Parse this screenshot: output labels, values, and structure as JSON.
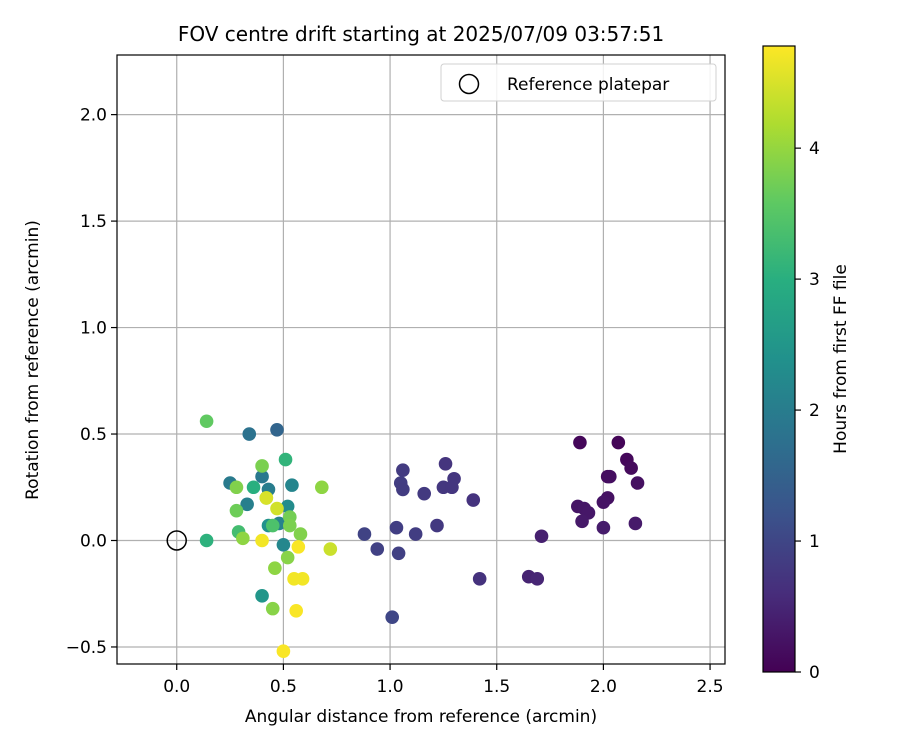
{
  "chart_data": {
    "type": "scatter",
    "title": "FOV centre drift starting at 2025/07/09 03:57:51",
    "xlabel": "Angular distance from reference (arcmin)",
    "ylabel": "Rotation from reference (arcmin)",
    "xlim": [
      -0.28,
      2.57
    ],
    "ylim": [
      -0.58,
      2.28
    ],
    "xticks": [
      0.0,
      0.5,
      1.0,
      1.5,
      2.0,
      2.5
    ],
    "yticks": [
      -0.5,
      0.0,
      0.5,
      1.0,
      1.5,
      2.0
    ],
    "xtick_labels": [
      "0.0",
      "0.5",
      "1.0",
      "1.5",
      "2.0",
      "2.5"
    ],
    "ytick_labels": [
      "−0.5",
      "0.0",
      "0.5",
      "1.0",
      "1.5",
      "2.0"
    ],
    "grid": true,
    "legend": {
      "placement": "top-right",
      "label": "Reference platepar"
    },
    "reference_point": {
      "x": 0.0,
      "y": 0.0
    },
    "colorbar": {
      "label": "Hours from first FF file",
      "range": [
        0,
        4.78
      ],
      "ticks": [
        0,
        1,
        2,
        3,
        4
      ],
      "tick_labels": [
        "0",
        "1",
        "2",
        "3",
        "4"
      ],
      "colormap": "viridis"
    },
    "points": [
      {
        "x": 2.07,
        "y": 0.46,
        "c": 0.05
      },
      {
        "x": 1.89,
        "y": 0.46,
        "c": 0.08
      },
      {
        "x": 2.11,
        "y": 0.38,
        "c": 0.1
      },
      {
        "x": 2.13,
        "y": 0.34,
        "c": 0.13
      },
      {
        "x": 2.02,
        "y": 0.3,
        "c": 0.16
      },
      {
        "x": 2.03,
        "y": 0.3,
        "c": 0.18
      },
      {
        "x": 2.16,
        "y": 0.27,
        "c": 0.2
      },
      {
        "x": 2.02,
        "y": 0.2,
        "c": 0.22
      },
      {
        "x": 2.0,
        "y": 0.18,
        "c": 0.24
      },
      {
        "x": 1.88,
        "y": 0.16,
        "c": 0.26
      },
      {
        "x": 1.91,
        "y": 0.15,
        "c": 0.28
      },
      {
        "x": 1.93,
        "y": 0.13,
        "c": 0.3
      },
      {
        "x": 1.9,
        "y": 0.09,
        "c": 0.32
      },
      {
        "x": 2.15,
        "y": 0.08,
        "c": 0.34
      },
      {
        "x": 2.0,
        "y": 0.06,
        "c": 0.36
      },
      {
        "x": 1.71,
        "y": 0.02,
        "c": 0.42
      },
      {
        "x": 1.65,
        "y": -0.17,
        "c": 0.46
      },
      {
        "x": 1.69,
        "y": -0.18,
        "c": 0.5
      },
      {
        "x": 1.26,
        "y": 0.36,
        "c": 0.72
      },
      {
        "x": 1.06,
        "y": 0.33,
        "c": 0.82
      },
      {
        "x": 1.3,
        "y": 0.29,
        "c": 0.75
      },
      {
        "x": 1.05,
        "y": 0.27,
        "c": 0.85
      },
      {
        "x": 1.25,
        "y": 0.25,
        "c": 0.76
      },
      {
        "x": 1.29,
        "y": 0.25,
        "c": 0.74
      },
      {
        "x": 1.06,
        "y": 0.24,
        "c": 0.84
      },
      {
        "x": 1.16,
        "y": 0.22,
        "c": 0.8
      },
      {
        "x": 1.39,
        "y": 0.19,
        "c": 0.7
      },
      {
        "x": 1.22,
        "y": 0.07,
        "c": 0.78
      },
      {
        "x": 1.03,
        "y": 0.06,
        "c": 0.88
      },
      {
        "x": 0.88,
        "y": 0.03,
        "c": 0.95
      },
      {
        "x": 1.12,
        "y": 0.03,
        "c": 0.86
      },
      {
        "x": 0.94,
        "y": -0.04,
        "c": 0.92
      },
      {
        "x": 1.04,
        "y": -0.06,
        "c": 0.9
      },
      {
        "x": 1.42,
        "y": -0.18,
        "c": 0.68
      },
      {
        "x": 1.01,
        "y": -0.36,
        "c": 1.0
      },
      {
        "x": 0.47,
        "y": 0.52,
        "c": 1.55
      },
      {
        "x": 0.34,
        "y": 0.5,
        "c": 1.8
      },
      {
        "x": 0.4,
        "y": 0.3,
        "c": 1.9
      },
      {
        "x": 0.25,
        "y": 0.27,
        "c": 1.95
      },
      {
        "x": 0.54,
        "y": 0.26,
        "c": 2.15
      },
      {
        "x": 0.43,
        "y": 0.24,
        "c": 2.0
      },
      {
        "x": 0.33,
        "y": 0.17,
        "c": 2.05
      },
      {
        "x": 0.52,
        "y": 0.16,
        "c": 2.3
      },
      {
        "x": 0.43,
        "y": 0.07,
        "c": 2.4
      },
      {
        "x": 0.48,
        "y": 0.08,
        "c": 2.1
      },
      {
        "x": 0.5,
        "y": -0.02,
        "c": 2.2
      },
      {
        "x": 0.4,
        "y": -0.26,
        "c": 2.5
      },
      {
        "x": 0.51,
        "y": 0.38,
        "c": 3.1
      },
      {
        "x": 0.14,
        "y": 0.0,
        "c": 3.05
      },
      {
        "x": 0.36,
        "y": 0.25,
        "c": 3.0
      },
      {
        "x": 0.29,
        "y": 0.04,
        "c": 3.3
      },
      {
        "x": 0.45,
        "y": 0.07,
        "c": 3.4
      },
      {
        "x": 0.14,
        "y": 0.56,
        "c": 3.6
      },
      {
        "x": 0.4,
        "y": 0.35,
        "c": 3.8
      },
      {
        "x": 0.28,
        "y": 0.25,
        "c": 3.85
      },
      {
        "x": 0.68,
        "y": 0.25,
        "c": 3.95
      },
      {
        "x": 0.42,
        "y": 0.2,
        "c": 3.9
      },
      {
        "x": 0.28,
        "y": 0.14,
        "c": 3.7
      },
      {
        "x": 0.53,
        "y": 0.11,
        "c": 3.75
      },
      {
        "x": 0.53,
        "y": 0.07,
        "c": 3.8
      },
      {
        "x": 0.58,
        "y": 0.03,
        "c": 3.85
      },
      {
        "x": 0.31,
        "y": 0.01,
        "c": 3.95
      },
      {
        "x": 0.52,
        "y": -0.08,
        "c": 3.9
      },
      {
        "x": 0.46,
        "y": -0.13,
        "c": 3.95
      },
      {
        "x": 0.45,
        "y": -0.32,
        "c": 3.9
      },
      {
        "x": 0.47,
        "y": 0.15,
        "c": 4.45
      },
      {
        "x": 0.42,
        "y": 0.2,
        "c": 4.5
      },
      {
        "x": 0.72,
        "y": -0.04,
        "c": 4.4
      },
      {
        "x": 0.4,
        "y": 0.0,
        "c": 4.7
      },
      {
        "x": 0.57,
        "y": -0.03,
        "c": 4.75
      },
      {
        "x": 0.55,
        "y": -0.18,
        "c": 4.7
      },
      {
        "x": 0.59,
        "y": -0.18,
        "c": 4.7
      },
      {
        "x": 0.56,
        "y": -0.33,
        "c": 4.75
      },
      {
        "x": 0.5,
        "y": -0.52,
        "c": 4.75
      }
    ]
  }
}
